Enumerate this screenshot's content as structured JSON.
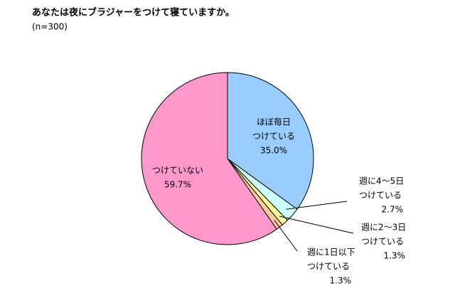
{
  "chart_data": {
    "type": "pie",
    "title": "あなたは夜にブラジャーをつけて寝ていますか。",
    "subtitle": "(n=300)",
    "categories": [
      [
        "ほぼ毎日",
        "つけている"
      ],
      [
        "週に4～5日",
        "つけている"
      ],
      [
        "週に2～3日",
        "つけている"
      ],
      [
        "週に1日以下",
        "つけている"
      ],
      [
        "つけていない"
      ]
    ],
    "values": [
      35.0,
      2.7,
      1.3,
      1.3,
      59.7
    ],
    "value_labels": [
      "35.0%",
      "2.7%",
      "1.3%",
      "1.3%",
      "59.7%"
    ],
    "colors": [
      "#99ccff",
      "#ccffff",
      "#ffff99",
      "#ffcc99",
      "#ff99cc"
    ]
  }
}
